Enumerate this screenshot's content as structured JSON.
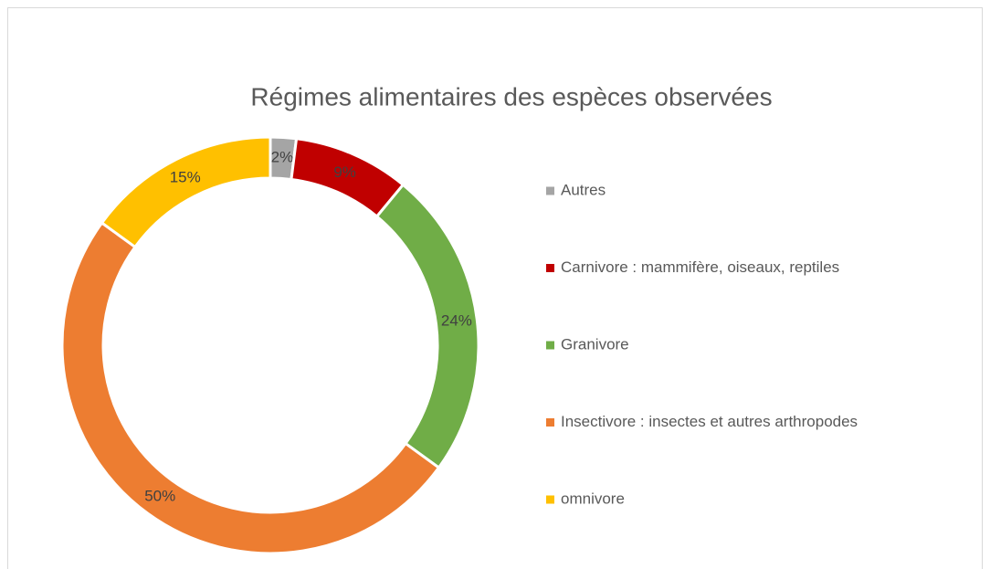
{
  "chart_data": {
    "type": "donut",
    "title": "Régimes alimentaires des espèces observées",
    "categories": [
      "Autres",
      "Carnivore : mammifère, oiseaux, reptiles",
      "Granivore",
      "Insectivore : insectes et autres arthropodes",
      "omnivore"
    ],
    "values": [
      2,
      9,
      24,
      50,
      15
    ],
    "value_labels": [
      "2%",
      "9%",
      "24%",
      "50%",
      "15%"
    ],
    "colors": [
      "#a5a5a5",
      "#c00000",
      "#70ad47",
      "#ed7d31",
      "#ffc000"
    ],
    "legend": "right"
  }
}
